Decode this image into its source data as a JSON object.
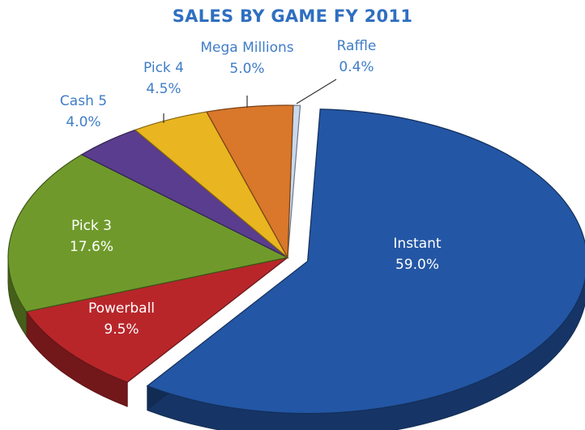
{
  "chart_data": {
    "type": "pie",
    "title": "SALES BY GAME FY 2011",
    "slices": [
      {
        "name": "Raffle",
        "value": 0.4,
        "label": "0.4%",
        "color": "#c9d9ee"
      },
      {
        "name": "Instant",
        "value": 59.0,
        "label": "59.0%",
        "color": "#2356a4"
      },
      {
        "name": "Powerball",
        "value": 9.5,
        "label": "9.5%",
        "color": "#b8262a"
      },
      {
        "name": "Pick 3",
        "value": 17.6,
        "label": "17.6%",
        "color": "#6f9a2b"
      },
      {
        "name": "Cash 5",
        "value": 4.0,
        "label": "4.0%",
        "color": "#5a3d8f"
      },
      {
        "name": "Pick 4",
        "value": 4.5,
        "label": "4.5%",
        "color": "#e9b520"
      },
      {
        "name": "Mega Millions",
        "value": 5.0,
        "label": "5.0%",
        "color": "#d9772a"
      }
    ],
    "label_colors": {
      "inside": "#ffffff",
      "outside": "#3f7dc7"
    }
  }
}
